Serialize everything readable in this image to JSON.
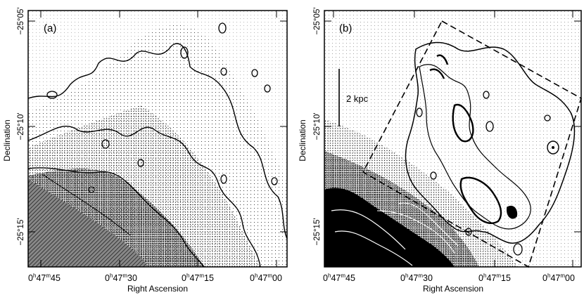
{
  "figure": {
    "panels": [
      {
        "id": "a",
        "label": "(a)",
        "ylabel": "Declination",
        "xlabel": "Right Ascension",
        "y_ticks": [
          "−25°05'",
          "−25°10'",
          "−25°15'"
        ],
        "x_ticks": [
          {
            "h": "0",
            "hs": "h",
            "m": "47",
            "ms": "m",
            "s": "45"
          },
          {
            "h": "0",
            "hs": "h",
            "m": "47",
            "ms": "m",
            "s": "30"
          },
          {
            "h": "0",
            "hs": "h",
            "m": "47",
            "ms": "m",
            "s": "15"
          },
          {
            "h": "0",
            "hs": "h",
            "m": "47",
            "ms": "m",
            "s": "00"
          }
        ]
      },
      {
        "id": "b",
        "label": "(b)",
        "ylabel": "Declination",
        "xlabel": "Right Ascension",
        "scale_bar": "2 kpc",
        "y_ticks": [
          "−25°05'",
          "−25°10'",
          "−25°15'"
        ],
        "x_ticks": [
          {
            "h": "0",
            "hs": "h",
            "m": "47",
            "ms": "m",
            "s": "45"
          },
          {
            "h": "0",
            "hs": "h",
            "m": "47",
            "ms": "m",
            "s": "30"
          },
          {
            "h": "0",
            "hs": "h",
            "m": "47",
            "ms": "m",
            "s": "15"
          },
          {
            "h": "0",
            "hs": "h",
            "m": "47",
            "ms": "m",
            "s": "00"
          }
        ]
      }
    ]
  }
}
